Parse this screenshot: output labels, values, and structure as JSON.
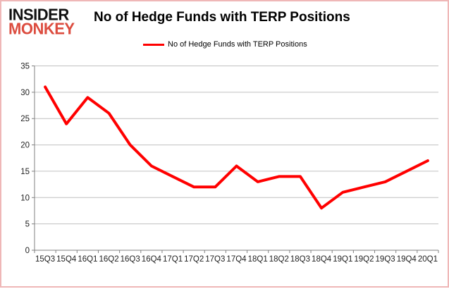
{
  "logo": {
    "line1": "INSIDER",
    "line2": "MONKEY"
  },
  "header": {
    "title": "No of Hedge Funds with TERP Positions"
  },
  "legend": {
    "label": "No of Hedge Funds with TERP Positions",
    "color": "#ff0000"
  },
  "colors": {
    "series": "#ff0000",
    "logo_red": "#dc4c3f",
    "border_pink": "#efb7b7",
    "gridline": "#c0c0c0",
    "axis": "#808080",
    "tick_text": "#1f1f1f"
  },
  "chart_data": {
    "type": "line",
    "title": "No of Hedge Funds with TERP Positions",
    "categories": [
      "15Q3",
      "15Q4",
      "16Q1",
      "16Q2",
      "16Q3",
      "16Q4",
      "17Q1",
      "17Q2",
      "17Q3",
      "17Q4",
      "18Q1",
      "18Q2",
      "18Q3",
      "18Q4",
      "19Q1",
      "19Q2",
      "19Q3",
      "19Q4",
      "20Q1"
    ],
    "series": [
      {
        "name": "No of Hedge Funds with TERP Positions",
        "color": "#ff0000",
        "values": [
          31,
          24,
          29,
          26,
          20,
          16,
          14,
          12,
          12,
          16,
          13,
          14,
          14,
          8,
          11,
          12,
          13,
          15,
          17
        ]
      }
    ],
    "xlabel": "",
    "ylabel": "",
    "ylim": [
      0,
      35
    ],
    "ytick_step": 5,
    "grid": true,
    "legend_position": "top-center"
  }
}
